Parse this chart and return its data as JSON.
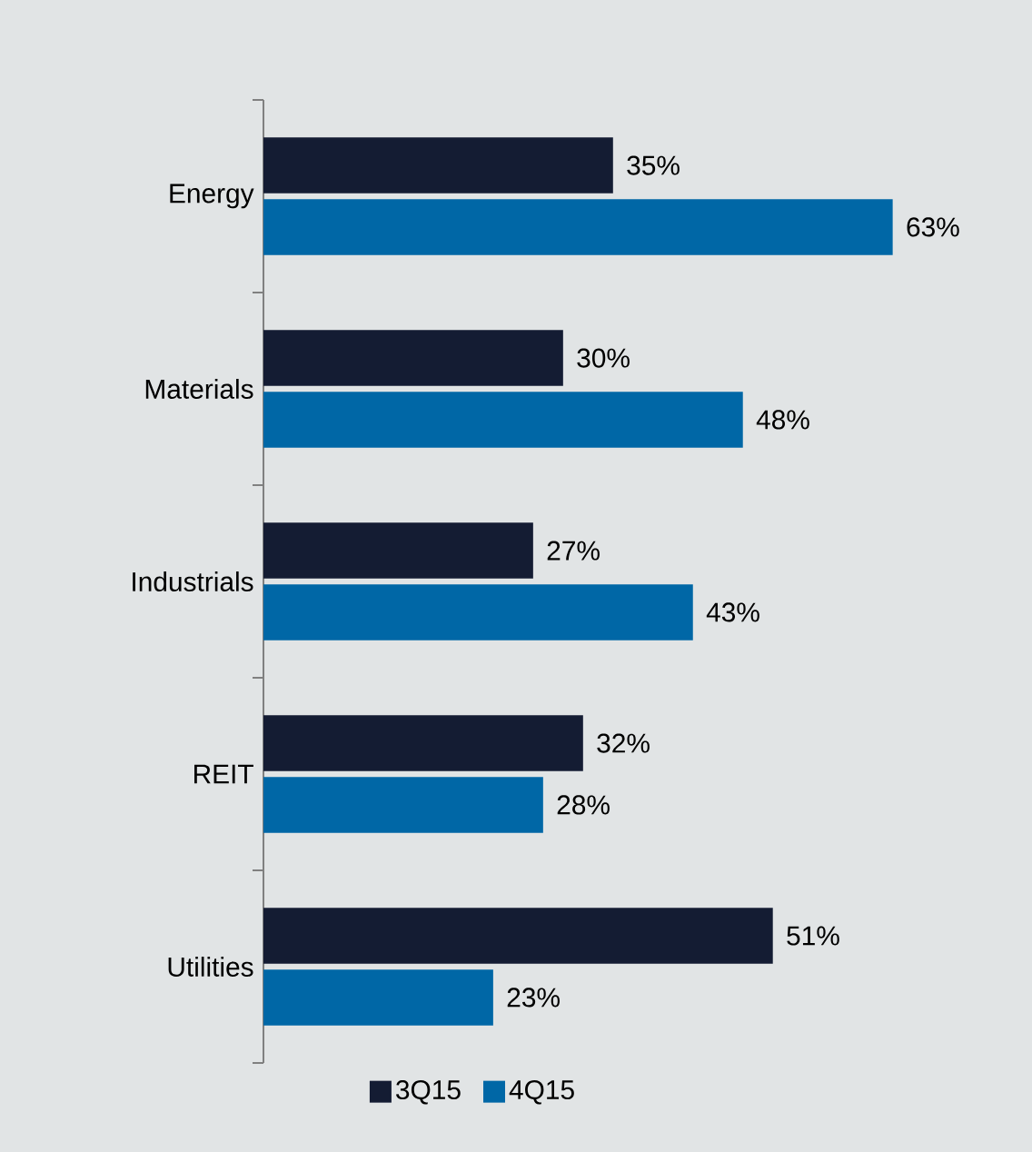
{
  "chart_data": {
    "type": "bar",
    "orientation": "horizontal",
    "categories": [
      "Energy",
      "Materials",
      "Industrials",
      "REIT",
      "Utilities"
    ],
    "series": [
      {
        "name": "3Q15",
        "color": "#141c33",
        "values": [
          35,
          30,
          27,
          32,
          51
        ],
        "value_labels": [
          "35%",
          "30%",
          "27%",
          "32%",
          "51%"
        ]
      },
      {
        "name": "4Q15",
        "color": "#0067a6",
        "values": [
          63,
          48,
          43,
          28,
          23
        ],
        "value_labels": [
          "63%",
          "48%",
          "43%",
          "28%",
          "23%"
        ]
      }
    ],
    "legend": "bottom"
  }
}
